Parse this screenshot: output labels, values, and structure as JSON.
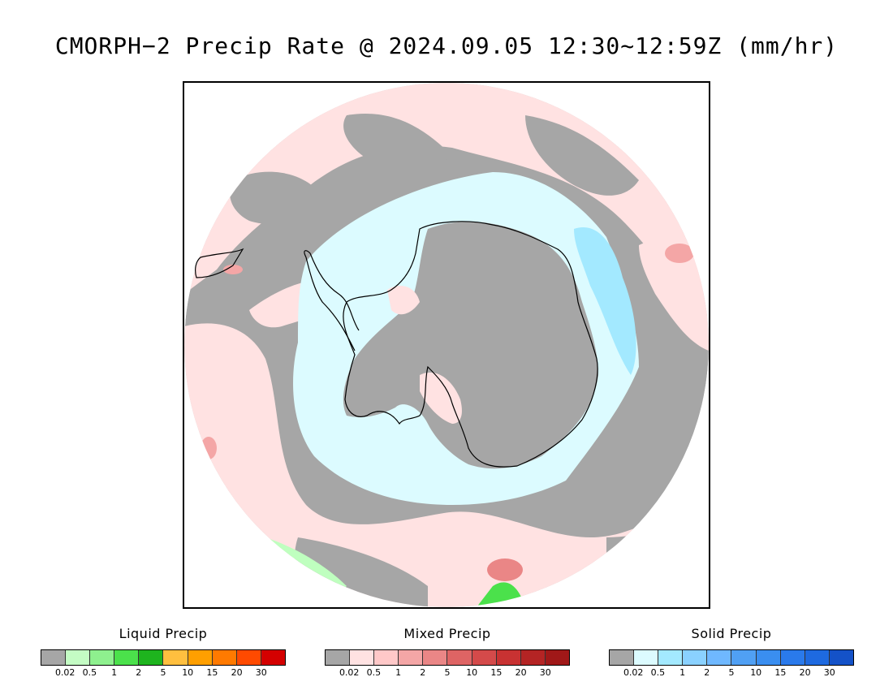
{
  "title": "CMORPH−2 Precip Rate @ 2024.09.05 12:30~12:59Z (mm/hr)",
  "map": {
    "projection": "south-polar-stereographic",
    "colors": {
      "no_precip": "#a6a6a6",
      "mixed_light": "#ffe2e2",
      "mixed_mid": "#f4a6a6",
      "solid_light": "#dcfbff",
      "solid_mid": "#a3e9ff",
      "liquid_light": "#bfffbf",
      "liquid_mid": "#4be14b",
      "coastline": "#000000"
    }
  },
  "legends": [
    {
      "title": "Liquid Precip",
      "colors": [
        "#a6a6a6",
        "#c4fcc4",
        "#8ef08e",
        "#4be14b",
        "#1eb41e",
        "#ffbf3f",
        "#ff9f00",
        "#ff7a00",
        "#ff4a00",
        "#d40000"
      ],
      "ticks": [
        "0.02",
        "0.5",
        "1",
        "2",
        "5",
        "10",
        "15",
        "20",
        "30"
      ]
    },
    {
      "title": "Mixed Precip",
      "colors": [
        "#a6a6a6",
        "#ffe2e2",
        "#ffc8c8",
        "#f4a6a6",
        "#ea8686",
        "#de6464",
        "#d44a4a",
        "#c83232",
        "#b42424",
        "#a01818"
      ],
      "ticks": [
        "0.02",
        "0.5",
        "1",
        "2",
        "5",
        "10",
        "15",
        "20",
        "30"
      ]
    },
    {
      "title": "Solid Precip",
      "colors": [
        "#a6a6a6",
        "#dcfbff",
        "#a3e9ff",
        "#8ad1ff",
        "#6fb8ff",
        "#50a0f4",
        "#3a8ef0",
        "#2a7aeb",
        "#1e6ae0",
        "#1452c8"
      ],
      "ticks": [
        "0.02",
        "0.5",
        "1",
        "2",
        "5",
        "10",
        "15",
        "20",
        "30"
      ]
    }
  ]
}
